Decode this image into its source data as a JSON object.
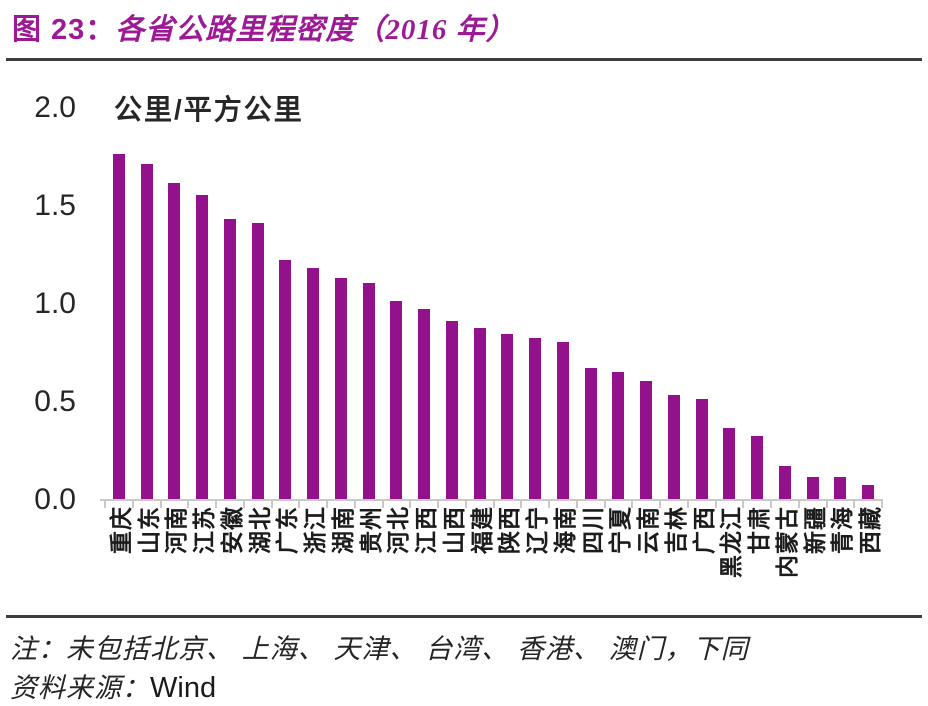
{
  "figure": {
    "title_prefix": "图 23：",
    "title_main": "各省公路里程密度（2016 年）"
  },
  "colors": {
    "title": "#9C1B94",
    "bar": "#94118C",
    "axis": "#C9C9C9",
    "text": "#262626"
  },
  "chart_data": {
    "type": "bar",
    "title": "各省公路里程密度（2016 年）",
    "unit_label": "公里/平方公里",
    "xlabel": "",
    "ylabel": "公里/平方公里",
    "ylim": [
      0,
      2.0
    ],
    "yticks": [
      "2.0",
      "1.5",
      "1.0",
      "0.5",
      "0.0"
    ],
    "grid": false,
    "legend": null,
    "bar_color": "#94118C",
    "categories": [
      "重庆",
      "山东",
      "河南",
      "江苏",
      "安徽",
      "湖北",
      "广东",
      "浙江",
      "湖南",
      "贵州",
      "河北",
      "江西",
      "山西",
      "福建",
      "陕西",
      "辽宁",
      "海南",
      "四川",
      "宁夏",
      "云南",
      "吉林",
      "广西",
      "黑龙江",
      "甘肃",
      "内蒙古",
      "新疆",
      "青海",
      "西藏"
    ],
    "values": [
      1.76,
      1.71,
      1.61,
      1.55,
      1.43,
      1.41,
      1.22,
      1.18,
      1.13,
      1.1,
      1.01,
      0.97,
      0.91,
      0.87,
      0.84,
      0.82,
      0.8,
      0.67,
      0.65,
      0.6,
      0.53,
      0.51,
      0.36,
      0.32,
      0.17,
      0.11,
      0.11,
      0.07
    ]
  },
  "footer": {
    "note": "注：未包括北京、 上海、 天津、 台湾、 香港、 澳门，下同",
    "source_label": "资料来源：",
    "source_value": "Wind"
  }
}
